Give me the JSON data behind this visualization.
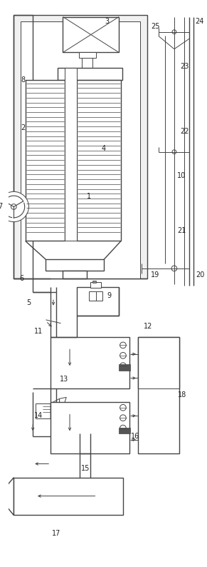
{
  "bg_color": "#ffffff",
  "line_color": "#444444",
  "label_color": "#222222",
  "fig_width": 2.91,
  "fig_height": 7.94,
  "dpi": 100
}
